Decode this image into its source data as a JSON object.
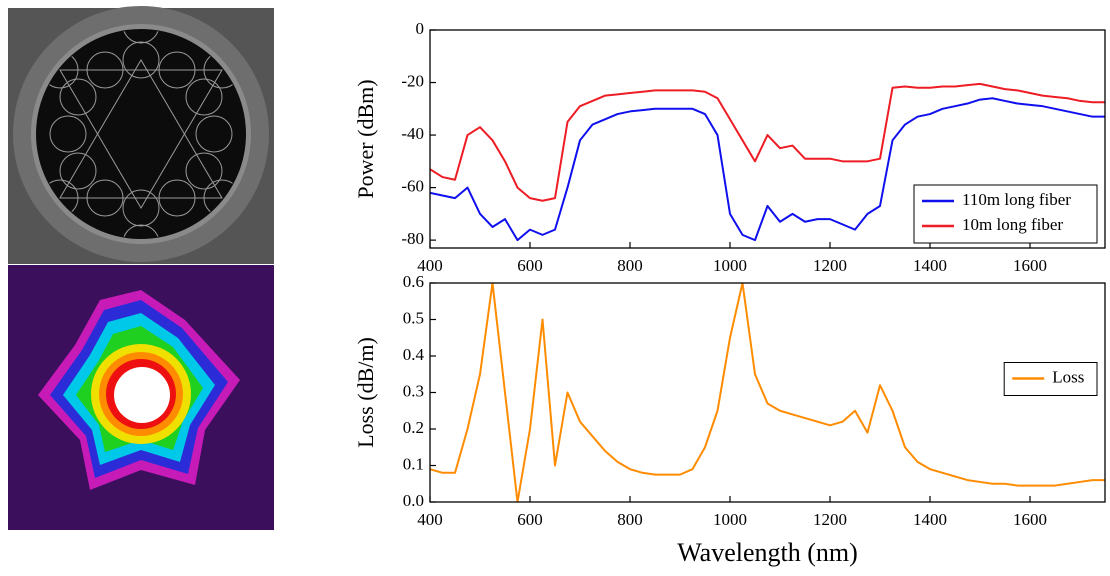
{
  "chart_data": [
    {
      "type": "line",
      "y_label": "Power (dBm)",
      "x": [
        400,
        425,
        450,
        475,
        500,
        525,
        550,
        575,
        600,
        625,
        650,
        675,
        700,
        725,
        750,
        775,
        800,
        825,
        850,
        875,
        900,
        925,
        950,
        975,
        1000,
        1025,
        1050,
        1075,
        1100,
        1125,
        1150,
        1175,
        1200,
        1225,
        1250,
        1275,
        1300,
        1325,
        1350,
        1375,
        1400,
        1425,
        1450,
        1475,
        1500,
        1525,
        1550,
        1575,
        1600,
        1625,
        1650,
        1675,
        1700,
        1725,
        1750
      ],
      "series": [
        {
          "name": "110m long fiber",
          "color": "#1010ee",
          "values": [
            -62,
            -63,
            -64,
            -60,
            -70,
            -75,
            -72,
            -80,
            -76,
            -78,
            -76,
            -60,
            -42,
            -36,
            -34,
            -32,
            -31,
            -30.5,
            -30,
            -30,
            -30,
            -30,
            -32,
            -40,
            -70,
            -78,
            -80,
            -67,
            -73,
            -70,
            -73,
            -72,
            -72,
            -74,
            -76,
            -70,
            -67,
            -42,
            -36,
            -33,
            -32,
            -30,
            -29,
            -28,
            -26.5,
            -26,
            -27,
            -28,
            -28.5,
            -29,
            -30,
            -31,
            -32,
            -33,
            -33
          ]
        },
        {
          "name": "10m long fiber",
          "color": "#ee1c24",
          "values": [
            -53,
            -56,
            -57,
            -40,
            -37,
            -42,
            -50,
            -60,
            -64,
            -65,
            -64,
            -35,
            -29,
            -27,
            -25,
            -24.5,
            -24,
            -23.5,
            -23,
            -23,
            -23,
            -23,
            -23.5,
            -26,
            -34,
            -42,
            -50,
            -40,
            -45,
            -44,
            -49,
            -49,
            -49,
            -50,
            -50,
            -50,
            -49,
            -22,
            -21.5,
            -22,
            -22,
            -21.5,
            -21.5,
            -21,
            -20.5,
            -21.5,
            -22.5,
            -23,
            -24,
            -25,
            -25.5,
            -26,
            -27,
            -27.5,
            -27.5
          ]
        }
      ],
      "xlim": [
        400,
        1750
      ],
      "xticks": [
        400,
        600,
        800,
        1000,
        1200,
        1400,
        1600
      ],
      "ylim": [
        -83,
        0
      ],
      "yticks": [
        0,
        -20,
        -40,
        -60,
        -80
      ],
      "legend": "lower right"
    },
    {
      "type": "line",
      "x_label": "Wavelength (nm)",
      "y_label": "Loss (dB/m)",
      "x": [
        400,
        425,
        450,
        475,
        500,
        525,
        550,
        575,
        600,
        625,
        650,
        675,
        700,
        725,
        750,
        775,
        800,
        825,
        850,
        875,
        900,
        925,
        950,
        975,
        1000,
        1025,
        1050,
        1075,
        1100,
        1125,
        1150,
        1175,
        1200,
        1225,
        1250,
        1275,
        1300,
        1325,
        1350,
        1375,
        1400,
        1425,
        1450,
        1475,
        1500,
        1525,
        1550,
        1575,
        1600,
        1625,
        1650,
        1675,
        1700,
        1725,
        1750
      ],
      "series": [
        {
          "name": "Loss",
          "color": "#ff8c00",
          "values": [
            0.09,
            0.08,
            0.08,
            0.2,
            0.35,
            0.6,
            0.3,
            0,
            0.2,
            0.5,
            0.1,
            0.3,
            0.22,
            0.18,
            0.14,
            0.11,
            0.09,
            0.08,
            0.075,
            0.075,
            0.075,
            0.09,
            0.15,
            0.25,
            0.45,
            0.6,
            0.35,
            0.27,
            0.25,
            0.24,
            0.23,
            0.22,
            0.21,
            0.22,
            0.25,
            0.19,
            0.32,
            0.25,
            0.15,
            0.11,
            0.09,
            0.08,
            0.07,
            0.06,
            0.055,
            0.05,
            0.05,
            0.045,
            0.045,
            0.045,
            0.045,
            0.05,
            0.055,
            0.06,
            0.06
          ]
        }
      ],
      "xlim": [
        400,
        1750
      ],
      "xticks": [
        400,
        600,
        800,
        1000,
        1200,
        1400,
        1600
      ],
      "ylim": [
        0,
        0.6
      ],
      "yticks": [
        {
          "value": 0,
          "label": "0.0"
        },
        0.1,
        0.2,
        0.3,
        0.4,
        0.5,
        0.6
      ],
      "legend": "center right"
    }
  ]
}
